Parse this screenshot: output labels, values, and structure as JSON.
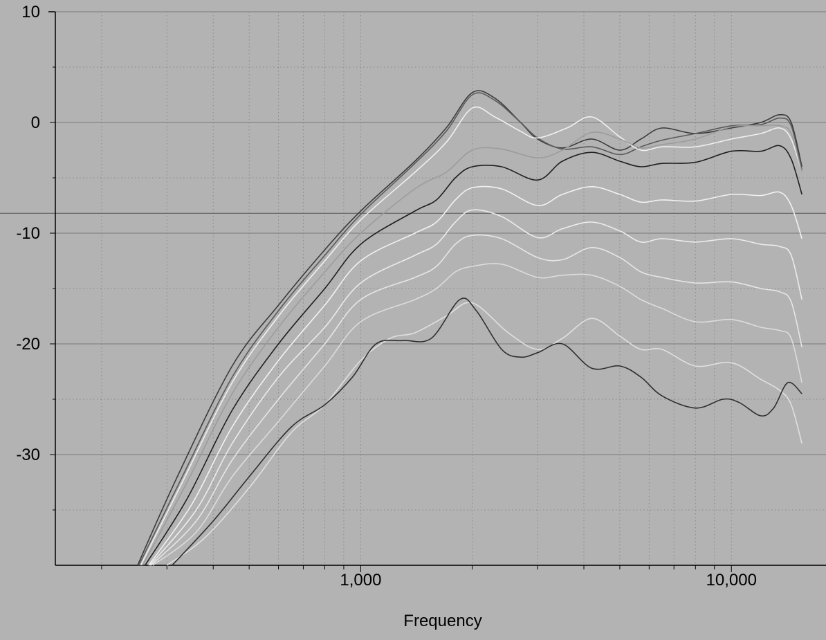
{
  "chart_data": {
    "type": "line",
    "title": "",
    "xlabel": "Frequency",
    "ylabel": "",
    "x_scale": "log",
    "xlim": [
      150,
      18000
    ],
    "ylim": [
      -40,
      10
    ],
    "x_ticks": [
      1000,
      10000
    ],
    "x_tick_labels": [
      "1,000",
      "10,000"
    ],
    "y_ticks": [
      10,
      0,
      -10,
      -20,
      -30
    ],
    "y_tick_labels": [
      "10",
      "0",
      "-10",
      "-20",
      "-30"
    ],
    "reference_line_y": -8.2,
    "grid": true,
    "legend": "none",
    "series": [
      {
        "color": "#3a3a3a",
        "points": [
          [
            250,
            -40
          ],
          [
            320,
            -32
          ],
          [
            450,
            -22
          ],
          [
            600,
            -16.5
          ],
          [
            800,
            -11.5
          ],
          [
            1000,
            -8
          ],
          [
            1400,
            -3.5
          ],
          [
            1700,
            -0.5
          ],
          [
            2000,
            2.7
          ],
          [
            2300,
            2.2
          ],
          [
            2700,
            0
          ],
          [
            3000,
            -1.5
          ],
          [
            3500,
            -2.3
          ],
          [
            4200,
            -1.5
          ],
          [
            5000,
            -2.5
          ],
          [
            5700,
            -1.5
          ],
          [
            6500,
            -0.5
          ],
          [
            8000,
            -1
          ],
          [
            10000,
            -0.5
          ],
          [
            12000,
            0
          ],
          [
            13500,
            0.7
          ],
          [
            14500,
            0
          ],
          [
            15500,
            -4
          ]
        ]
      },
      {
        "color": "#5a5a5a",
        "points": [
          [
            252,
            -40
          ],
          [
            330,
            -32
          ],
          [
            450,
            -23
          ],
          [
            600,
            -17
          ],
          [
            800,
            -12
          ],
          [
            1000,
            -8.3
          ],
          [
            1400,
            -3.7
          ],
          [
            1700,
            -0.8
          ],
          [
            2000,
            2.5
          ],
          [
            2300,
            2
          ],
          [
            2700,
            0
          ],
          [
            3000,
            -1.4
          ],
          [
            3500,
            -2.4
          ],
          [
            4200,
            -2.2
          ],
          [
            5000,
            -2.9
          ],
          [
            5700,
            -2.2
          ],
          [
            6500,
            -1.6
          ],
          [
            8000,
            -1
          ],
          [
            10000,
            -0.3
          ],
          [
            12000,
            -0.2
          ],
          [
            13500,
            0.4
          ],
          [
            14500,
            -0.3
          ],
          [
            15500,
            -4.3
          ]
        ]
      },
      {
        "color": "#f0f0f0",
        "points": [
          [
            255,
            -40
          ],
          [
            330,
            -32.5
          ],
          [
            450,
            -23.5
          ],
          [
            600,
            -17.5
          ],
          [
            800,
            -12.5
          ],
          [
            1000,
            -8.8
          ],
          [
            1400,
            -4.5
          ],
          [
            1700,
            -1.8
          ],
          [
            2000,
            1.3
          ],
          [
            2300,
            0.5
          ],
          [
            2700,
            -0.8
          ],
          [
            3000,
            -1.4
          ],
          [
            3600,
            -0.5
          ],
          [
            4200,
            0.5
          ],
          [
            5000,
            -1.3
          ],
          [
            5700,
            -2.5
          ],
          [
            6500,
            -2.2
          ],
          [
            8000,
            -2.2
          ],
          [
            10000,
            -1.5
          ],
          [
            12000,
            -1
          ],
          [
            13500,
            -0.5
          ],
          [
            14500,
            -1.5
          ],
          [
            15500,
            -4.5
          ]
        ]
      },
      {
        "color": "#9c9c9c",
        "points": [
          [
            258,
            -40
          ],
          [
            340,
            -32.5
          ],
          [
            450,
            -24.5
          ],
          [
            600,
            -18.5
          ],
          [
            800,
            -13.5
          ],
          [
            1000,
            -10
          ],
          [
            1400,
            -6
          ],
          [
            1700,
            -4.5
          ],
          [
            2000,
            -2.5
          ],
          [
            2400,
            -2.4
          ],
          [
            3000,
            -3.2
          ],
          [
            3500,
            -2.5
          ],
          [
            4200,
            -0.9
          ],
          [
            5000,
            -1.5
          ],
          [
            5700,
            -2.3
          ],
          [
            6500,
            -2
          ],
          [
            8000,
            -1.5
          ],
          [
            10000,
            -0.4
          ],
          [
            12000,
            -0.3
          ],
          [
            13500,
            -0.3
          ],
          [
            14500,
            -1
          ],
          [
            15500,
            -4.5
          ]
        ]
      },
      {
        "color": "#1e1e1e",
        "points": [
          [
            262,
            -40
          ],
          [
            340,
            -34
          ],
          [
            450,
            -26
          ],
          [
            600,
            -20
          ],
          [
            800,
            -15
          ],
          [
            1000,
            -11
          ],
          [
            1400,
            -8
          ],
          [
            1600,
            -7
          ],
          [
            1800,
            -5
          ],
          [
            2000,
            -4
          ],
          [
            2400,
            -4
          ],
          [
            3000,
            -5.2
          ],
          [
            3500,
            -3.5
          ],
          [
            4200,
            -2.7
          ],
          [
            5000,
            -3.5
          ],
          [
            5700,
            -4
          ],
          [
            6500,
            -3.7
          ],
          [
            8000,
            -3.6
          ],
          [
            10000,
            -2.6
          ],
          [
            12000,
            -2.6
          ],
          [
            13500,
            -2.1
          ],
          [
            14500,
            -3.3
          ],
          [
            15500,
            -6.5
          ]
        ]
      },
      {
        "color": "#f2f2f2",
        "points": [
          [
            268,
            -40
          ],
          [
            350,
            -34.5
          ],
          [
            450,
            -27.5
          ],
          [
            600,
            -21.5
          ],
          [
            800,
            -16.5
          ],
          [
            1000,
            -12.5
          ],
          [
            1400,
            -10
          ],
          [
            1600,
            -9
          ],
          [
            1800,
            -7
          ],
          [
            2000,
            -5.9
          ],
          [
            2400,
            -6
          ],
          [
            3000,
            -7.5
          ],
          [
            3500,
            -6.5
          ],
          [
            4200,
            -5.8
          ],
          [
            5000,
            -6.5
          ],
          [
            5700,
            -7.2
          ],
          [
            6500,
            -7
          ],
          [
            8000,
            -7.1
          ],
          [
            10000,
            -6.5
          ],
          [
            12000,
            -6.6
          ],
          [
            13500,
            -6.3
          ],
          [
            14500,
            -7.5
          ],
          [
            15500,
            -10.5
          ]
        ]
      },
      {
        "color": "#ececec",
        "points": [
          [
            270,
            -40
          ],
          [
            360,
            -35
          ],
          [
            450,
            -29
          ],
          [
            600,
            -23
          ],
          [
            800,
            -18.5
          ],
          [
            1000,
            -14.5
          ],
          [
            1400,
            -12
          ],
          [
            1600,
            -11
          ],
          [
            1800,
            -9
          ],
          [
            2000,
            -7.9
          ],
          [
            2400,
            -8.5
          ],
          [
            3000,
            -10.4
          ],
          [
            3500,
            -9.6
          ],
          [
            4200,
            -9
          ],
          [
            5000,
            -9.8
          ],
          [
            5700,
            -10.8
          ],
          [
            6500,
            -10.5
          ],
          [
            8000,
            -10.8
          ],
          [
            10000,
            -10.5
          ],
          [
            12000,
            -11
          ],
          [
            13500,
            -11.2
          ],
          [
            14500,
            -12
          ],
          [
            15500,
            -16
          ]
        ]
      },
      {
        "color": "#e6e6e6",
        "points": [
          [
            272,
            -40
          ],
          [
            360,
            -36
          ],
          [
            450,
            -30.5
          ],
          [
            600,
            -25
          ],
          [
            800,
            -20
          ],
          [
            1000,
            -16
          ],
          [
            1400,
            -14
          ],
          [
            1600,
            -13
          ],
          [
            1800,
            -11
          ],
          [
            2000,
            -10.2
          ],
          [
            2400,
            -10.5
          ],
          [
            3000,
            -12.2
          ],
          [
            3500,
            -12.4
          ],
          [
            4200,
            -11.3
          ],
          [
            5000,
            -12.2
          ],
          [
            5700,
            -13.5
          ],
          [
            6500,
            -14
          ],
          [
            8000,
            -14.5
          ],
          [
            10000,
            -14.4
          ],
          [
            12000,
            -15
          ],
          [
            13500,
            -15.3
          ],
          [
            14500,
            -16.2
          ],
          [
            15500,
            -20.3
          ]
        ]
      },
      {
        "color": "#dcdcdc",
        "points": [
          [
            275,
            -40
          ],
          [
            360,
            -37
          ],
          [
            450,
            -32
          ],
          [
            600,
            -27
          ],
          [
            800,
            -22
          ],
          [
            1000,
            -18
          ],
          [
            1400,
            -16
          ],
          [
            1600,
            -15
          ],
          [
            1800,
            -13.5
          ],
          [
            2000,
            -13
          ],
          [
            2400,
            -12.8
          ],
          [
            3000,
            -14
          ],
          [
            3500,
            -13.8
          ],
          [
            4200,
            -13.8
          ],
          [
            5000,
            -14.8
          ],
          [
            5700,
            -16
          ],
          [
            6500,
            -16.8
          ],
          [
            8000,
            -18
          ],
          [
            10000,
            -17.8
          ],
          [
            12000,
            -18.5
          ],
          [
            13500,
            -18.8
          ],
          [
            14500,
            -19.5
          ],
          [
            15500,
            -23.5
          ]
        ]
      },
      {
        "color": "#e0e0e0",
        "points": [
          [
            300,
            -40
          ],
          [
            380,
            -37.5
          ],
          [
            500,
            -33
          ],
          [
            650,
            -28
          ],
          [
            800,
            -25.5
          ],
          [
            1000,
            -21.5
          ],
          [
            1200,
            -19.5
          ],
          [
            1400,
            -19
          ],
          [
            1700,
            -17.5
          ],
          [
            2000,
            -16.3
          ],
          [
            2500,
            -19
          ],
          [
            3000,
            -20.5
          ],
          [
            3500,
            -19.5
          ],
          [
            4200,
            -17.7
          ],
          [
            5000,
            -19.3
          ],
          [
            5700,
            -20.5
          ],
          [
            6500,
            -20.5
          ],
          [
            8000,
            -22
          ],
          [
            10000,
            -21.7
          ],
          [
            12000,
            -23.2
          ],
          [
            13500,
            -24.2
          ],
          [
            14500,
            -25.5
          ],
          [
            15500,
            -29
          ]
        ]
      },
      {
        "color": "#2e2e2e",
        "points": [
          [
            310,
            -40
          ],
          [
            400,
            -36
          ],
          [
            500,
            -32
          ],
          [
            650,
            -27.5
          ],
          [
            800,
            -25.5
          ],
          [
            950,
            -23
          ],
          [
            1100,
            -20
          ],
          [
            1300,
            -19.7
          ],
          [
            1550,
            -19.5
          ],
          [
            1850,
            -16
          ],
          [
            2050,
            -17
          ],
          [
            2400,
            -20.5
          ],
          [
            2700,
            -21.2
          ],
          [
            3000,
            -20.8
          ],
          [
            3500,
            -20
          ],
          [
            4200,
            -22.2
          ],
          [
            5000,
            -22
          ],
          [
            5700,
            -23
          ],
          [
            6500,
            -24.7
          ],
          [
            8000,
            -25.8
          ],
          [
            9500,
            -25
          ],
          [
            10500,
            -25.3
          ],
          [
            12000,
            -26.5
          ],
          [
            13000,
            -25.8
          ],
          [
            14200,
            -23.5
          ],
          [
            15500,
            -24.5
          ]
        ]
      }
    ]
  }
}
